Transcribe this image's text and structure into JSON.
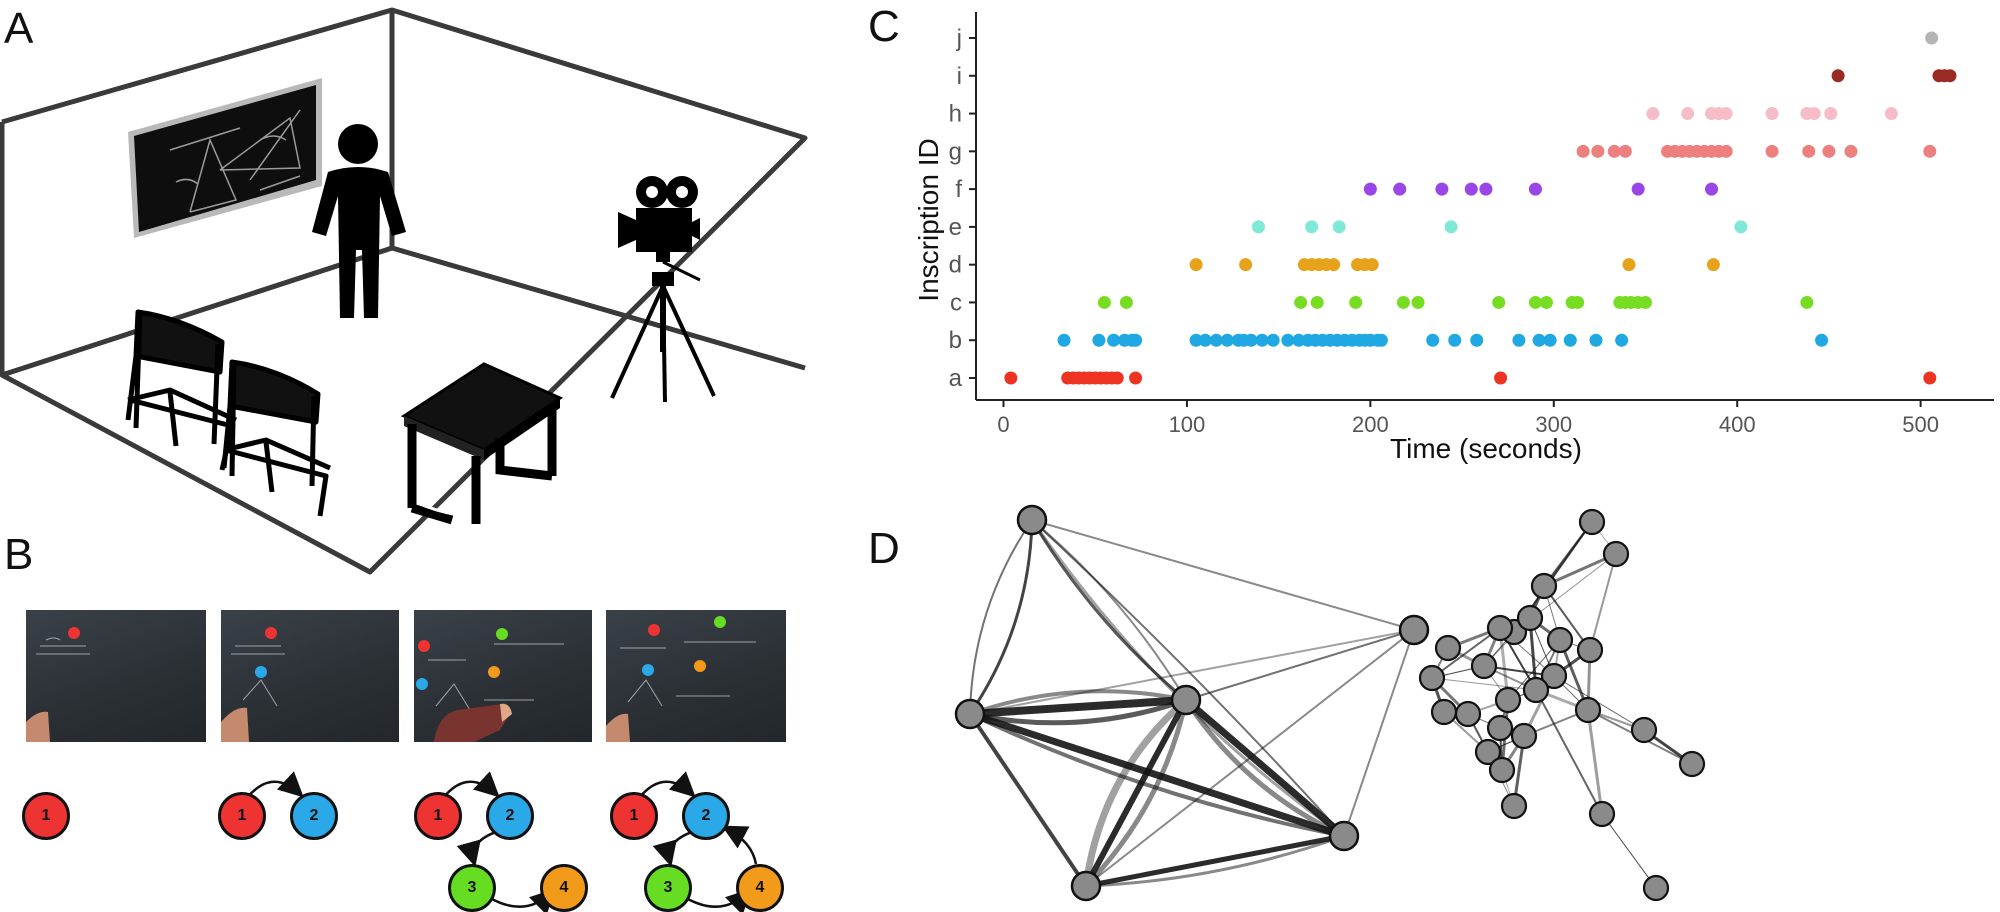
{
  "panels": {
    "a": "A",
    "b": "B",
    "c": "C",
    "d": "D"
  },
  "panel_b": {
    "frames": [
      {
        "dots": [
          {
            "color": "#ee3333"
          }
        ]
      },
      {
        "dots": [
          {
            "color": "#ee3333"
          },
          {
            "color": "#2aa8e8"
          }
        ]
      },
      {
        "dots": [
          {
            "color": "#ee3333"
          },
          {
            "color": "#66dd22"
          },
          {
            "color": "#2aa8e8"
          },
          {
            "color": "#f29a1a"
          }
        ]
      },
      {
        "dots": [
          {
            "color": "#ee3333"
          },
          {
            "color": "#66dd22"
          },
          {
            "color": "#2aa8e8"
          },
          {
            "color": "#f29a1a"
          }
        ]
      }
    ],
    "node_labels": [
      "1",
      "2",
      "3",
      "4"
    ],
    "node_colors": {
      "1": "#ee3333",
      "2": "#2aa8e8",
      "3": "#66dd22",
      "4": "#f29a1a"
    }
  },
  "chart_data": {
    "type": "scatter",
    "xlabel": "Time (seconds)",
    "ylabel": "Inscription ID",
    "xlim": [
      -15,
      540
    ],
    "xticks": [
      0,
      100,
      200,
      300,
      400,
      500
    ],
    "categories": [
      "a",
      "b",
      "c",
      "d",
      "e",
      "f",
      "g",
      "h",
      "i",
      "j"
    ],
    "grid": false,
    "series": [
      {
        "category": "a",
        "color": "#ee3322",
        "x": [
          4,
          35,
          38,
          41,
          44,
          47,
          50,
          53,
          56,
          59,
          62,
          72,
          271,
          505
        ]
      },
      {
        "category": "b",
        "color": "#1fa8e2",
        "x": [
          33,
          52,
          60,
          66,
          70,
          72,
          105,
          110,
          116,
          122,
          128,
          131,
          135,
          141,
          147,
          155,
          161,
          166,
          170,
          174,
          178,
          182,
          186,
          190,
          194,
          197,
          200,
          204,
          206,
          234,
          246,
          258,
          281,
          292,
          298,
          309,
          323,
          337,
          446
        ]
      },
      {
        "category": "c",
        "color": "#77dd22",
        "x": [
          55,
          67,
          162,
          171,
          192,
          218,
          226,
          270,
          290,
          296,
          310,
          313,
          336,
          339,
          342,
          346,
          350,
          438
        ]
      },
      {
        "category": "d",
        "color": "#e6a21a",
        "x": [
          105,
          132,
          164,
          168,
          172,
          176,
          180,
          193,
          197,
          201,
          341,
          387
        ]
      },
      {
        "category": "e",
        "color": "#7fe8d6",
        "x": [
          139,
          168,
          183,
          244,
          402
        ]
      },
      {
        "category": "f",
        "color": "#9945e8",
        "x": [
          200,
          216,
          239,
          255,
          263,
          290,
          346,
          386
        ]
      },
      {
        "category": "g",
        "color": "#ee7f7f",
        "x": [
          316,
          324,
          333,
          339,
          362,
          366,
          370,
          374,
          378,
          382,
          386,
          390,
          394,
          419,
          439,
          450,
          462,
          505
        ]
      },
      {
        "category": "h",
        "color": "#f6bcc8",
        "x": [
          354,
          373,
          386,
          390,
          394,
          419,
          438,
          442,
          451,
          484
        ]
      },
      {
        "category": "i",
        "color": "#9a2a24",
        "x": [
          455,
          510,
          513,
          516
        ]
      },
      {
        "category": "j",
        "color": "#b4b4b4",
        "x": [
          506
        ]
      }
    ]
  },
  "colors": {
    "node_fill": "#8a8a8a",
    "node_stroke": "#111111"
  }
}
